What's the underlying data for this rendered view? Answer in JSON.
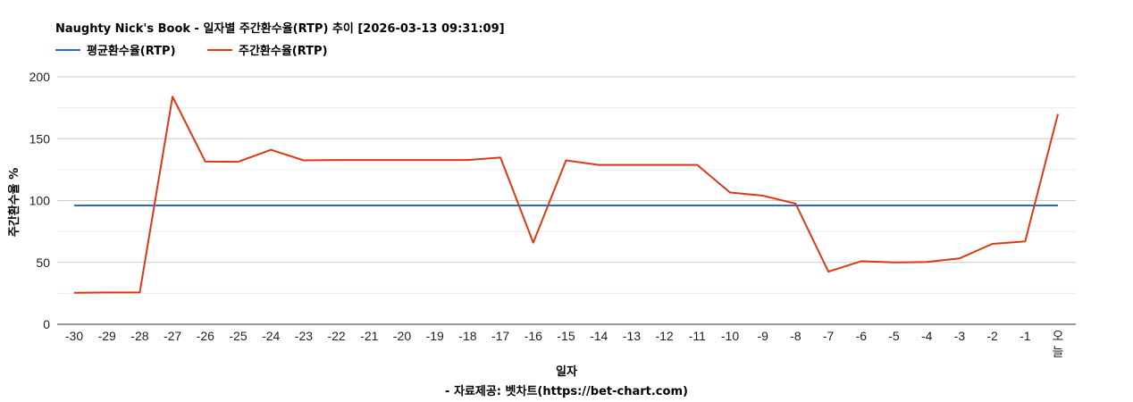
{
  "title": "Naughty Nick's Book - 일자별 주간환수율(RTP) 추이 [2026-03-13 09:31:09]",
  "footer": "- 자료제공: 벳차트(https://bet-chart.com)",
  "chart_data": {
    "type": "line",
    "xlabel": "일자",
    "ylabel": "주간환수율 %",
    "ylim": [
      0,
      200
    ],
    "yticks": [
      0,
      50,
      100,
      150,
      200
    ],
    "grid": true,
    "legend_position": "top-left",
    "categories": [
      "-30",
      "-29",
      "-28",
      "-27",
      "-26",
      "-25",
      "-24",
      "-23",
      "-22",
      "-21",
      "-20",
      "-19",
      "-18",
      "-17",
      "-16",
      "-15",
      "-14",
      "-13",
      "-12",
      "-11",
      "-10",
      "-9",
      "-8",
      "-7",
      "-6",
      "-5",
      "-4",
      "-3",
      "-2",
      "-1",
      "오늘"
    ],
    "series": [
      {
        "name": "평균환수율(RTP)",
        "color": "#3366cc",
        "values": [
          96,
          96,
          96,
          96,
          96,
          96,
          96,
          96,
          96,
          96,
          96,
          96,
          96,
          96,
          96,
          96,
          96,
          96,
          96,
          96,
          96,
          96,
          96,
          96,
          96,
          96,
          96,
          96,
          96,
          96,
          96
        ]
      },
      {
        "name": "주간환수율(RTP)",
        "color": "#dc3912",
        "values": [
          25.5,
          25.7,
          25.7,
          184,
          131.5,
          131.3,
          141,
          132.5,
          132.8,
          132.8,
          132.8,
          132.8,
          132.8,
          134.7,
          66,
          132.5,
          128.8,
          128.8,
          128.8,
          128.8,
          106.5,
          104,
          97.5,
          42.5,
          51,
          50,
          50.3,
          53.3,
          65,
          67,
          170
        ]
      }
    ]
  }
}
